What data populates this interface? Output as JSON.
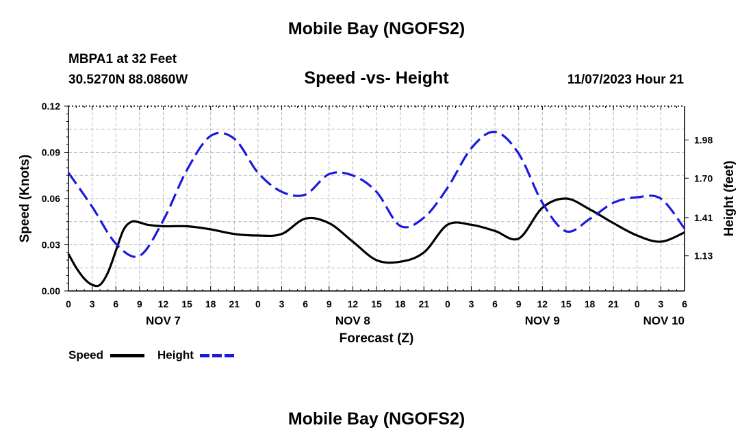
{
  "page": {
    "title": "Mobile Bay (NGOFS2)",
    "repeated_title": "Mobile Bay (NGOFS2)",
    "station": "MBPA1 at 32 Feet",
    "coordinates": "30.5270N  88.0860W",
    "subtitle": "Speed -vs- Height",
    "datetime": "11/07/2023 Hour 21"
  },
  "legend": {
    "speed_label": "Speed",
    "height_label": "Height"
  },
  "chart_data": {
    "type": "line",
    "title": "Speed -vs- Height",
    "xlabel": "Forecast (Z)",
    "ylabel_left": "Speed (Knots)",
    "ylabel_right": "Height (feet)",
    "x_hours_range": [
      0,
      78
    ],
    "x_ticks": [
      {
        "h": 0,
        "label": "0"
      },
      {
        "h": 3,
        "label": "3"
      },
      {
        "h": 6,
        "label": "6"
      },
      {
        "h": 9,
        "label": "9"
      },
      {
        "h": 12,
        "label": "12"
      },
      {
        "h": 15,
        "label": "15"
      },
      {
        "h": 18,
        "label": "18"
      },
      {
        "h": 21,
        "label": "21"
      },
      {
        "h": 24,
        "label": "0"
      },
      {
        "h": 27,
        "label": "3"
      },
      {
        "h": 30,
        "label": "6"
      },
      {
        "h": 33,
        "label": "9"
      },
      {
        "h": 36,
        "label": "12"
      },
      {
        "h": 39,
        "label": "15"
      },
      {
        "h": 42,
        "label": "18"
      },
      {
        "h": 45,
        "label": "21"
      },
      {
        "h": 48,
        "label": "0"
      },
      {
        "h": 51,
        "label": "3"
      },
      {
        "h": 54,
        "label": "6"
      },
      {
        "h": 57,
        "label": "9"
      },
      {
        "h": 60,
        "label": "12"
      },
      {
        "h": 63,
        "label": "15"
      },
      {
        "h": 66,
        "label": "18"
      },
      {
        "h": 69,
        "label": "21"
      },
      {
        "h": 72,
        "label": "0"
      },
      {
        "h": 75,
        "label": "3"
      },
      {
        "h": 78,
        "label": "6"
      }
    ],
    "day_labels": [
      {
        "h": 12,
        "label": "NOV 7"
      },
      {
        "h": 36,
        "label": "NOV 8"
      },
      {
        "h": 60,
        "label": "NOV 9"
      },
      {
        "h": 78,
        "label": "NOV 10"
      }
    ],
    "y_left": {
      "min": 0.0,
      "max": 0.12,
      "ticks": [
        "0.00",
        "0.03",
        "0.06",
        "0.09",
        "0.12"
      ]
    },
    "y_right": {
      "min": 0.872,
      "max": 2.229,
      "ticks": [
        "1.13",
        "1.41",
        "1.70",
        "1.98"
      ]
    },
    "series": [
      {
        "name": "Speed",
        "axis": "left",
        "color": "#000000",
        "dash": "solid",
        "x": [
          0,
          1,
          2,
          3,
          4,
          5,
          6,
          7,
          8,
          9,
          10,
          12,
          15,
          18,
          21,
          24,
          27,
          30,
          33,
          36,
          39,
          42,
          45,
          48,
          51,
          54,
          57,
          60,
          63,
          66,
          69,
          72,
          75,
          78
        ],
        "y": [
          0.024,
          0.015,
          0.008,
          0.004,
          0.004,
          0.012,
          0.026,
          0.04,
          0.045,
          0.0445,
          0.043,
          0.042,
          0.042,
          0.04,
          0.037,
          0.036,
          0.037,
          0.047,
          0.044,
          0.032,
          0.02,
          0.019,
          0.025,
          0.043,
          0.043,
          0.039,
          0.034,
          0.054,
          0.06,
          0.053,
          0.044,
          0.036,
          0.032,
          0.038
        ]
      },
      {
        "name": "Height",
        "axis": "right",
        "color": "#1a1adc",
        "dash": "dashed",
        "x": [
          0,
          3,
          6,
          9,
          12,
          15,
          18,
          21,
          24,
          27,
          30,
          33,
          36,
          39,
          42,
          45,
          48,
          51,
          54,
          57,
          60,
          63,
          66,
          69,
          72,
          75,
          78
        ],
        "y": [
          1.74,
          1.49,
          1.22,
          1.13,
          1.39,
          1.76,
          2.01,
          1.99,
          1.74,
          1.6,
          1.58,
          1.73,
          1.72,
          1.6,
          1.35,
          1.41,
          1.63,
          1.92,
          2.04,
          1.88,
          1.52,
          1.31,
          1.4,
          1.52,
          1.56,
          1.55,
          1.33
        ]
      }
    ]
  }
}
